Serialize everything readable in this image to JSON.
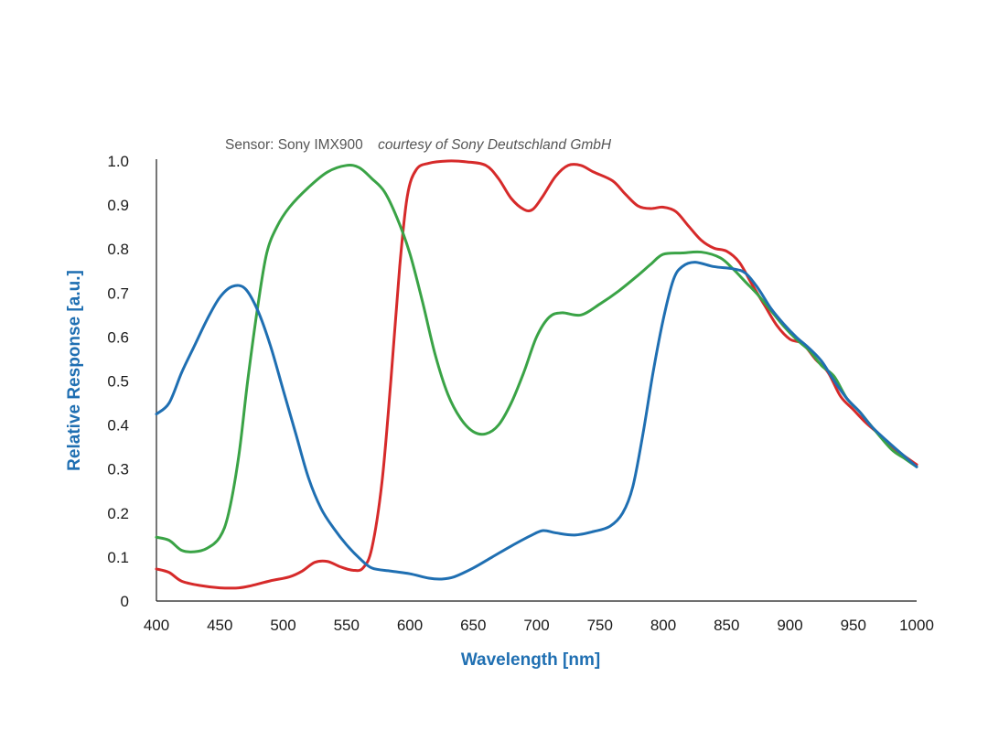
{
  "chart_data": {
    "type": "line",
    "annotation": {
      "sensor": "Sensor: Sony IMX900",
      "credit": "courtesy of Sony Deutschland GmbH"
    },
    "xlabel": "Wavelength [nm]",
    "ylabel": "Relative Response [a.u.]",
    "xlim": [
      400,
      1000
    ],
    "ylim": [
      0,
      1.0
    ],
    "x_ticks": [
      "400",
      "450",
      "500",
      "550",
      "600",
      "650",
      "700",
      "750",
      "800",
      "850",
      "900",
      "950",
      "1000"
    ],
    "y_ticks": [
      "0",
      "0.1",
      "0.2",
      "0.3",
      "0.4",
      "0.5",
      "0.6",
      "0.7",
      "0.8",
      "0.9",
      "1.0"
    ],
    "grid": false,
    "series": [
      {
        "color": "#d62a2a",
        "points": [
          [
            400,
            0.073
          ],
          [
            410,
            0.065
          ],
          [
            420,
            0.045
          ],
          [
            435,
            0.035
          ],
          [
            450,
            0.03
          ],
          [
            465,
            0.03
          ],
          [
            475,
            0.035
          ],
          [
            490,
            0.046
          ],
          [
            505,
            0.055
          ],
          [
            515,
            0.068
          ],
          [
            525,
            0.088
          ],
          [
            535,
            0.09
          ],
          [
            545,
            0.078
          ],
          [
            555,
            0.07
          ],
          [
            563,
            0.075
          ],
          [
            570,
            0.12
          ],
          [
            578,
            0.27
          ],
          [
            585,
            0.5
          ],
          [
            592,
            0.76
          ],
          [
            598,
            0.92
          ],
          [
            605,
            0.98
          ],
          [
            615,
            0.995
          ],
          [
            630,
            1.0
          ],
          [
            645,
            0.998
          ],
          [
            660,
            0.99
          ],
          [
            670,
            0.96
          ],
          [
            680,
            0.915
          ],
          [
            690,
            0.89
          ],
          [
            697,
            0.89
          ],
          [
            705,
            0.92
          ],
          [
            715,
            0.965
          ],
          [
            725,
            0.99
          ],
          [
            735,
            0.99
          ],
          [
            745,
            0.975
          ],
          [
            760,
            0.955
          ],
          [
            770,
            0.925
          ],
          [
            780,
            0.898
          ],
          [
            790,
            0.892
          ],
          [
            800,
            0.895
          ],
          [
            810,
            0.885
          ],
          [
            820,
            0.852
          ],
          [
            830,
            0.82
          ],
          [
            840,
            0.802
          ],
          [
            850,
            0.795
          ],
          [
            860,
            0.77
          ],
          [
            870,
            0.72
          ],
          [
            880,
            0.672
          ],
          [
            890,
            0.625
          ],
          [
            900,
            0.595
          ],
          [
            910,
            0.585
          ],
          [
            920,
            0.55
          ],
          [
            930,
            0.52
          ],
          [
            940,
            0.465
          ],
          [
            950,
            0.435
          ],
          [
            960,
            0.405
          ],
          [
            970,
            0.38
          ],
          [
            980,
            0.352
          ],
          [
            990,
            0.33
          ],
          [
            1000,
            0.31
          ]
        ]
      },
      {
        "color": "#3aa346",
        "points": [
          [
            400,
            0.145
          ],
          [
            410,
            0.138
          ],
          [
            420,
            0.115
          ],
          [
            430,
            0.112
          ],
          [
            440,
            0.12
          ],
          [
            450,
            0.145
          ],
          [
            457,
            0.2
          ],
          [
            465,
            0.33
          ],
          [
            472,
            0.5
          ],
          [
            480,
            0.67
          ],
          [
            487,
            0.79
          ],
          [
            495,
            0.85
          ],
          [
            505,
            0.895
          ],
          [
            520,
            0.94
          ],
          [
            535,
            0.975
          ],
          [
            550,
            0.99
          ],
          [
            560,
            0.985
          ],
          [
            570,
            0.96
          ],
          [
            580,
            0.93
          ],
          [
            590,
            0.87
          ],
          [
            600,
            0.79
          ],
          [
            610,
            0.68
          ],
          [
            620,
            0.56
          ],
          [
            630,
            0.47
          ],
          [
            640,
            0.415
          ],
          [
            650,
            0.385
          ],
          [
            660,
            0.38
          ],
          [
            670,
            0.4
          ],
          [
            680,
            0.45
          ],
          [
            690,
            0.52
          ],
          [
            700,
            0.6
          ],
          [
            710,
            0.645
          ],
          [
            720,
            0.655
          ],
          [
            735,
            0.65
          ],
          [
            750,
            0.675
          ],
          [
            765,
            0.705
          ],
          [
            780,
            0.74
          ],
          [
            790,
            0.765
          ],
          [
            800,
            0.788
          ],
          [
            815,
            0.791
          ],
          [
            830,
            0.793
          ],
          [
            845,
            0.78
          ],
          [
            855,
            0.755
          ],
          [
            865,
            0.725
          ],
          [
            875,
            0.695
          ],
          [
            885,
            0.66
          ],
          [
            895,
            0.625
          ],
          [
            905,
            0.595
          ],
          [
            915,
            0.57
          ],
          [
            925,
            0.535
          ],
          [
            935,
            0.51
          ],
          [
            945,
            0.46
          ],
          [
            955,
            0.43
          ],
          [
            965,
            0.395
          ],
          [
            980,
            0.345
          ],
          [
            990,
            0.325
          ],
          [
            1000,
            0.305
          ]
        ]
      },
      {
        "color": "#1f6fb2",
        "points": [
          [
            400,
            0.425
          ],
          [
            410,
            0.45
          ],
          [
            420,
            0.52
          ],
          [
            430,
            0.58
          ],
          [
            440,
            0.64
          ],
          [
            450,
            0.69
          ],
          [
            460,
            0.715
          ],
          [
            470,
            0.71
          ],
          [
            480,
            0.66
          ],
          [
            490,
            0.58
          ],
          [
            500,
            0.48
          ],
          [
            510,
            0.38
          ],
          [
            520,
            0.28
          ],
          [
            530,
            0.21
          ],
          [
            540,
            0.165
          ],
          [
            550,
            0.128
          ],
          [
            560,
            0.098
          ],
          [
            570,
            0.075
          ],
          [
            585,
            0.068
          ],
          [
            600,
            0.062
          ],
          [
            615,
            0.052
          ],
          [
            625,
            0.05
          ],
          [
            635,
            0.055
          ],
          [
            650,
            0.075
          ],
          [
            665,
            0.1
          ],
          [
            680,
            0.125
          ],
          [
            695,
            0.148
          ],
          [
            705,
            0.16
          ],
          [
            715,
            0.155
          ],
          [
            730,
            0.15
          ],
          [
            745,
            0.158
          ],
          [
            758,
            0.17
          ],
          [
            768,
            0.2
          ],
          [
            776,
            0.26
          ],
          [
            784,
            0.38
          ],
          [
            792,
            0.52
          ],
          [
            800,
            0.64
          ],
          [
            808,
            0.73
          ],
          [
            815,
            0.76
          ],
          [
            825,
            0.77
          ],
          [
            840,
            0.76
          ],
          [
            855,
            0.755
          ],
          [
            865,
            0.745
          ],
          [
            875,
            0.71
          ],
          [
            885,
            0.665
          ],
          [
            895,
            0.63
          ],
          [
            905,
            0.6
          ],
          [
            915,
            0.575
          ],
          [
            925,
            0.545
          ],
          [
            935,
            0.5
          ],
          [
            945,
            0.46
          ],
          [
            955,
            0.43
          ],
          [
            965,
            0.395
          ],
          [
            980,
            0.355
          ],
          [
            990,
            0.33
          ],
          [
            1000,
            0.305
          ]
        ]
      }
    ]
  },
  "colors": {
    "axis_title": "#1f6fb2",
    "axis_line": "#1a1a1a"
  }
}
